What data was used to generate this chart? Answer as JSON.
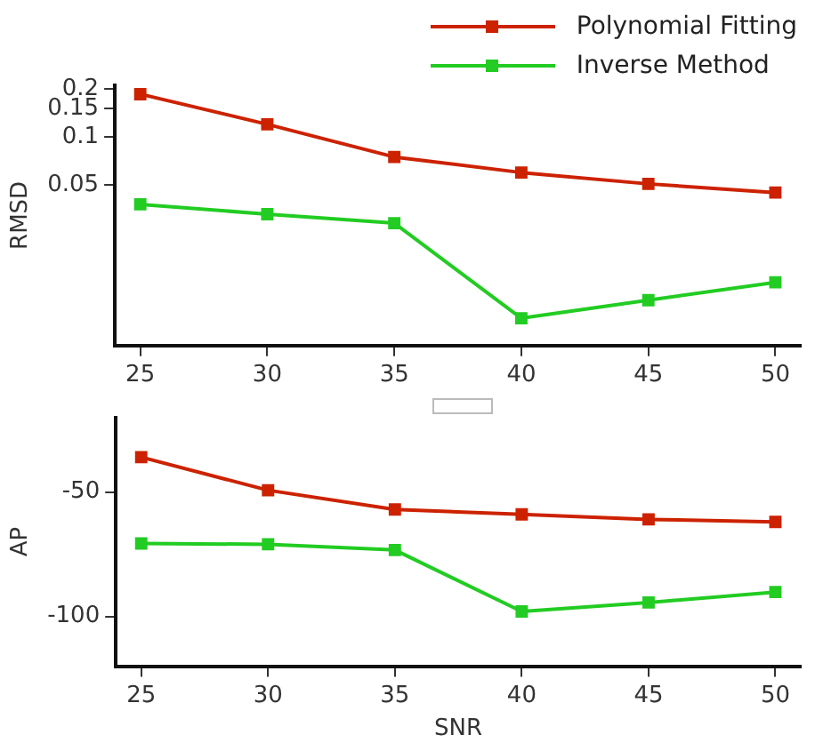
{
  "chart_data": [
    {
      "type": "line",
      "ylabel": "RMSD",
      "x": [
        25,
        30,
        35,
        40,
        45,
        50
      ],
      "log": "y",
      "xlim": [
        24,
        51
      ],
      "xticks": [
        25,
        30,
        35,
        40,
        45,
        50
      ],
      "ylim": [
        0.005,
        0.21
      ],
      "yticks": [
        0.05,
        0.1,
        0.15,
        0.2
      ],
      "grid": false,
      "legend": "top right",
      "marker": "square",
      "line_style": "solid",
      "series": [
        {
          "name": "Polynomial Fitting",
          "color": "#cc2200",
          "values": [
            0.185,
            0.12,
            0.075,
            0.06,
            0.051,
            0.045
          ]
        },
        {
          "name": "Inverse Method",
          "color": "#22cc22",
          "values": [
            0.038,
            0.033,
            0.029,
            0.0074,
            0.0096,
            0.0124
          ]
        }
      ]
    },
    {
      "type": "line",
      "xlabel": "SNR",
      "ylabel": "AP",
      "x": [
        25,
        30,
        35,
        40,
        45,
        50
      ],
      "xlim": [
        24,
        51
      ],
      "xticks": [
        25,
        30,
        35,
        40,
        45,
        50
      ],
      "ylim": [
        -120,
        -20
      ],
      "yticks": [
        -50,
        -100
      ],
      "grid": false,
      "legend": false,
      "marker": "square",
      "line_style": "solid",
      "series": [
        {
          "color": "#cc2200",
          "values": [
            -36,
            -49.3,
            -57,
            -59,
            -61,
            -62
          ]
        },
        {
          "color": "#22cc22",
          "values": [
            -70.7,
            -71,
            -73.3,
            -98,
            -94.4,
            -90.2
          ]
        }
      ]
    }
  ]
}
